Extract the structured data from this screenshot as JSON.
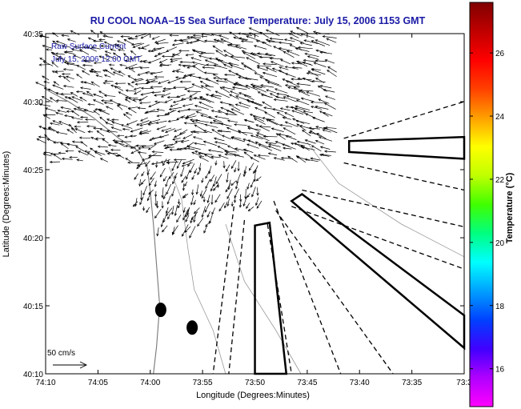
{
  "chart_data": {
    "type": "quiver",
    "title": "RU COOL  NOAA–15  Sea Surface Temperature:  July 15, 2006 1153 GMT",
    "annotation_lines": [
      "Raw Surface Current",
      "July 15, 2006 12:00 GMT"
    ],
    "xlabel": "Longitude (Degrees:Minutes)",
    "ylabel": "Latitude (Degrees:Minutes)",
    "x_ticks": [
      "74:10",
      "74:05",
      "74:00",
      "73:55",
      "73:50",
      "73:45",
      "73:40",
      "73:35",
      "73:3"
    ],
    "x_tick_values": [
      -74.1667,
      -74.0833,
      -74.0,
      -73.9167,
      -73.8333,
      -73.75,
      -73.6667,
      -73.5833,
      -73.5
    ],
    "y_ticks": [
      "40:10",
      "40:15",
      "40:20",
      "40:25",
      "40:30",
      "40:35"
    ],
    "y_tick_values": [
      40.1667,
      40.25,
      40.3333,
      40.4167,
      40.5,
      40.5833
    ],
    "xlim": [
      -74.1667,
      -73.5
    ],
    "ylim": [
      40.1667,
      40.5833
    ],
    "scale_label": "50 cm/s",
    "colorbar": {
      "label": "Temperature (°C)",
      "ticks": [
        "16",
        "18",
        "20",
        "22",
        "24",
        "26"
      ],
      "tick_values": [
        16,
        18,
        20,
        22,
        24,
        26
      ],
      "range": [
        14.8,
        27.6
      ],
      "colors": [
        "#ff00ff",
        "#b000ff",
        "#4000ff",
        "#0040ff",
        "#00a0ff",
        "#00ffff",
        "#00ff80",
        "#40ff00",
        "#c0ff00",
        "#ffff00",
        "#ffa000",
        "#ff4000",
        "#ff0000",
        "#c00000",
        "#800000"
      ]
    },
    "markers": [
      {
        "name": "buoy-1",
        "lon": -73.9833,
        "lat": 40.245
      },
      {
        "name": "buoy-2",
        "lon": -73.9333,
        "lat": 40.2233
      }
    ],
    "box_outlines": [
      {
        "name": "box-east",
        "points": [
          [
            -73.6833,
            40.4517
          ],
          [
            -73.5,
            40.4567
          ],
          [
            -73.5,
            40.43
          ],
          [
            -73.6833,
            40.4383
          ]
        ]
      },
      {
        "name": "box-diagonal",
        "points": [
          [
            -73.775,
            40.3783
          ],
          [
            -73.7583,
            40.3867
          ],
          [
            -73.5,
            40.2383
          ],
          [
            -73.5,
            40.1983
          ]
        ]
      },
      {
        "name": "box-south",
        "points": [
          [
            -73.8333,
            40.1667
          ],
          [
            -73.8333,
            40.3483
          ],
          [
            -73.81,
            40.3517
          ],
          [
            -73.7833,
            40.1667
          ]
        ]
      }
    ],
    "dashed_lines": [
      {
        "points": [
          [
            -73.6917,
            40.455
          ],
          [
            -73.5,
            40.5
          ]
        ]
      },
      {
        "points": [
          [
            -73.6917,
            40.425
          ],
          [
            -73.5,
            40.3917
          ]
        ]
      },
      {
        "points": [
          [
            -73.7583,
            40.3917
          ],
          [
            -73.5,
            40.3467
          ]
        ]
      },
      {
        "points": [
          [
            -73.775,
            40.3717
          ],
          [
            -73.5,
            40.295
          ]
        ]
      },
      {
        "points": [
          [
            -73.8,
            40.3667
          ],
          [
            -73.6133,
            40.1667
          ]
        ]
      },
      {
        "points": [
          [
            -73.8133,
            40.35
          ],
          [
            -73.775,
            40.1667
          ]
        ]
      },
      {
        "points": [
          [
            -73.85,
            40.355
          ],
          [
            -73.875,
            40.1667
          ]
        ]
      },
      {
        "points": [
          [
            -73.8667,
            40.3717
          ],
          [
            -73.9,
            40.1667
          ]
        ]
      },
      {
        "points": [
          [
            -73.8033,
            40.3783
          ],
          [
            -73.6967,
            40.1667
          ]
        ]
      }
    ],
    "vector_field": {
      "regions": [
        {
          "lon": [
            -74.1667,
            -74.0167
          ],
          "lat": [
            40.43,
            40.5833
          ],
          "u": -18,
          "v": 6
        },
        {
          "lon": [
            -74.0167,
            -73.9167
          ],
          "lat": [
            40.43,
            40.5833
          ],
          "u": -22,
          "v": -4
        },
        {
          "lon": [
            -73.9167,
            -73.7
          ],
          "lat": [
            40.43,
            40.5833
          ],
          "u": -26,
          "v": 8
        },
        {
          "lon": [
            -74.0167,
            -73.8167
          ],
          "lat": [
            40.375,
            40.43
          ],
          "u": -6,
          "v": -16
        },
        {
          "lon": [
            -73.9833,
            -73.9
          ],
          "lat": [
            40.35,
            40.375
          ],
          "u": -10,
          "v": -20
        }
      ],
      "grid_spacing_minutes": 0.6
    }
  }
}
